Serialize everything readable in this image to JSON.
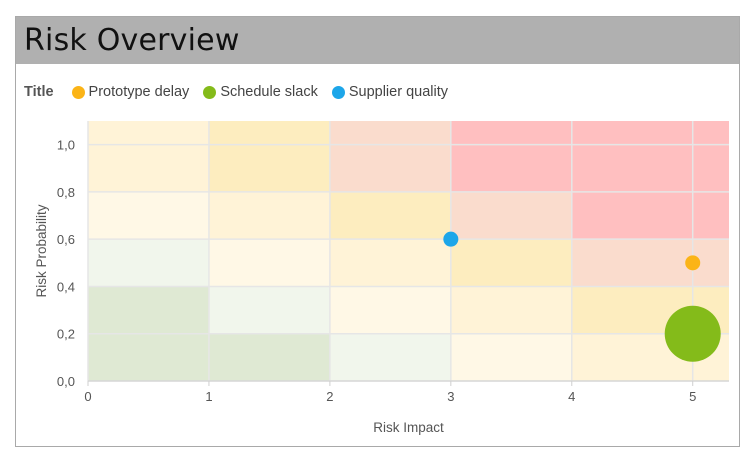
{
  "header": {
    "title": "Risk Overview"
  },
  "legend": {
    "title": "Title",
    "items": [
      {
        "label": "Prototype delay",
        "color": "#fbb417"
      },
      {
        "label": "Schedule slack",
        "color": "#84bb1a"
      },
      {
        "label": "Supplier quality",
        "color": "#1da6e9"
      }
    ]
  },
  "chart_data": {
    "type": "scatter",
    "xlabel": "Risk Impact",
    "ylabel": "Risk Probability",
    "xlim": [
      0,
      5.3
    ],
    "ylim": [
      0,
      1.1
    ],
    "x_ticks": [
      "0",
      "1",
      "2",
      "3",
      "4",
      "5"
    ],
    "x_tick_values": [
      0,
      1,
      2,
      3,
      4,
      5
    ],
    "y_ticks": [
      "0,0",
      "0,2",
      "0,4",
      "0,6",
      "0,8",
      "1,0"
    ],
    "y_tick_values": [
      0,
      0.2,
      0.4,
      0.6,
      0.8,
      1.0
    ],
    "grid": true,
    "legend_position": "top-left",
    "series": [
      {
        "name": "Prototype delay",
        "color": "#fbb417",
        "points": [
          {
            "x": 5,
            "y": 0.5,
            "size": 1
          }
        ]
      },
      {
        "name": "Schedule slack",
        "color": "#84bb1a",
        "points": [
          {
            "x": 5,
            "y": 0.2,
            "size": 5
          }
        ]
      },
      {
        "name": "Supplier quality",
        "color": "#1da6e9",
        "points": [
          {
            "x": 3,
            "y": 0.6,
            "size": 1
          }
        ]
      }
    ],
    "background_zones": {
      "x_edges": [
        0,
        1,
        2,
        3,
        4,
        5.3
      ],
      "y_edges": [
        0,
        0.2,
        0.4,
        0.6,
        0.8,
        1.1
      ],
      "colors": [
        [
          "#dfe9d3",
          "#dfe9d3",
          "#f1f6ec",
          "#fff8e6",
          "#fff3d7"
        ],
        [
          "#dfe9d3",
          "#f1f6ec",
          "#fff8e6",
          "#fff3d7",
          "#fdedbf"
        ],
        [
          "#f1f6ec",
          "#fff8e6",
          "#fff3d7",
          "#fdedbf",
          "#fadccd"
        ],
        [
          "#fff8e6",
          "#fff3d7",
          "#fdedbf",
          "#fadccd",
          "#ffbfc0"
        ],
        [
          "#fff3d7",
          "#fdedbf",
          "#fadccd",
          "#ffbfc0",
          "#ffbfc0"
        ]
      ]
    }
  }
}
